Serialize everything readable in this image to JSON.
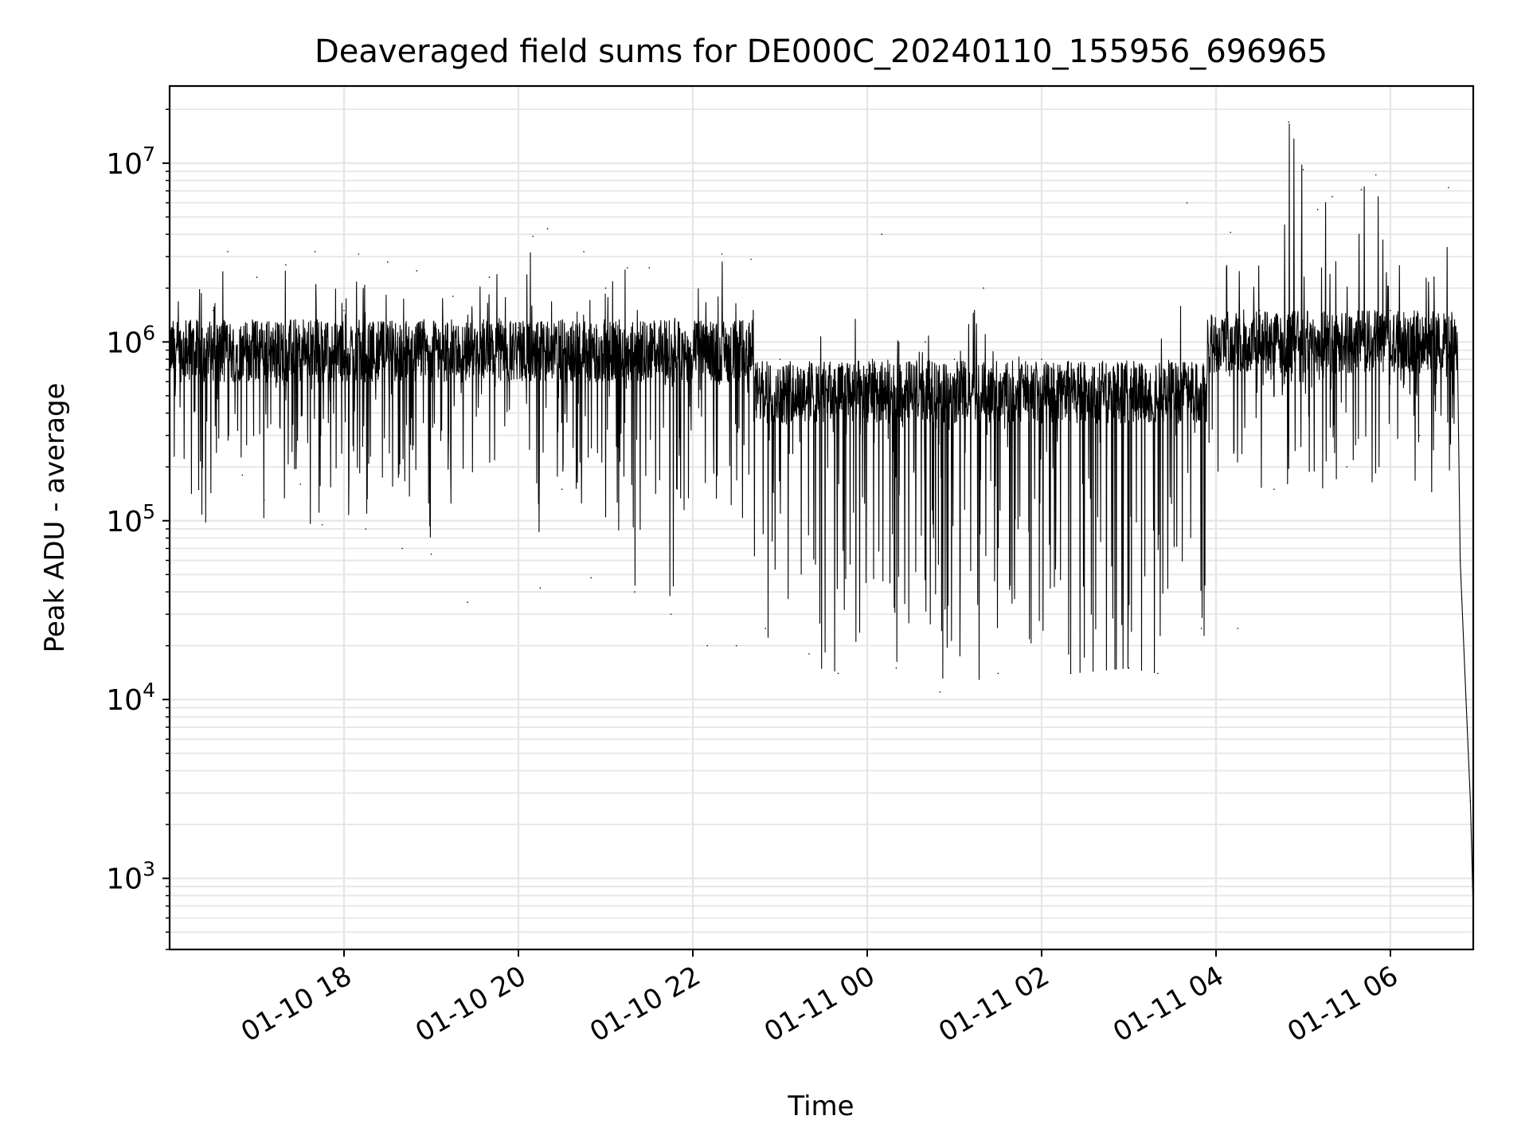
{
  "chart_data": {
    "type": "line",
    "title": "Deaveraged field sums for DE000C_20240110_155956_696965",
    "xlabel": "Time",
    "ylabel": "Peak ADU - average",
    "yscale": "log",
    "ylim": [
      400,
      27000000
    ],
    "xlim": [
      "2024-01-10 16:00",
      "2024-01-11 06:57"
    ],
    "grid": true,
    "x_ticks": [
      {
        "t": "2024-01-10 18:00",
        "label": "01-10 18"
      },
      {
        "t": "2024-01-10 20:00",
        "label": "01-10 20"
      },
      {
        "t": "2024-01-10 22:00",
        "label": "01-10 22"
      },
      {
        "t": "2024-01-11 00:00",
        "label": "01-11 00"
      },
      {
        "t": "2024-01-11 02:00",
        "label": "01-11 02"
      },
      {
        "t": "2024-01-11 04:00",
        "label": "01-11 04"
      },
      {
        "t": "2024-01-11 06:00",
        "label": "01-11 06"
      }
    ],
    "y_ticks": [
      {
        "value": 1000,
        "base": "10",
        "exp": "3"
      },
      {
        "value": 10000,
        "base": "10",
        "exp": "4"
      },
      {
        "value": 100000,
        "base": "10",
        "exp": "5"
      },
      {
        "value": 1000000,
        "base": "10",
        "exp": "6"
      },
      {
        "value": 10000000,
        "base": "10",
        "exp": "7"
      }
    ],
    "series": [
      {
        "color": "#000000",
        "points": [
          [
            "2024-01-10 16:00",
            800000
          ],
          [
            "2024-01-10 16:15",
            1100000
          ],
          [
            "2024-01-10 16:20",
            150000
          ],
          [
            "2024-01-10 16:30",
            1500000
          ],
          [
            "2024-01-10 16:40",
            3200000
          ],
          [
            "2024-01-10 16:50",
            180000
          ],
          [
            "2024-01-10 17:00",
            2300000
          ],
          [
            "2024-01-10 17:05",
            130000
          ],
          [
            "2024-01-10 17:20",
            2700000
          ],
          [
            "2024-01-10 17:30",
            160000
          ],
          [
            "2024-01-10 17:40",
            3200000
          ],
          [
            "2024-01-10 17:45",
            95000
          ],
          [
            "2024-01-10 18:00",
            1500000
          ],
          [
            "2024-01-10 18:10",
            3100000
          ],
          [
            "2024-01-10 18:15",
            90000
          ],
          [
            "2024-01-10 18:30",
            2800000
          ],
          [
            "2024-01-10 18:40",
            70000
          ],
          [
            "2024-01-10 18:50",
            2500000
          ],
          [
            "2024-01-10 19:00",
            65000
          ],
          [
            "2024-01-10 19:15",
            1800000
          ],
          [
            "2024-01-10 19:25",
            35000
          ],
          [
            "2024-01-10 19:40",
            2300000
          ],
          [
            "2024-01-10 20:00",
            1200000
          ],
          [
            "2024-01-10 20:10",
            3900000
          ],
          [
            "2024-01-10 20:15",
            42000
          ],
          [
            "2024-01-10 20:20",
            4300000
          ],
          [
            "2024-01-10 20:30",
            150000
          ],
          [
            "2024-01-10 20:45",
            3200000
          ],
          [
            "2024-01-10 20:50",
            48000
          ],
          [
            "2024-01-10 21:00",
            2000000
          ],
          [
            "2024-01-10 21:15",
            2600000
          ],
          [
            "2024-01-10 21:20",
            40000
          ],
          [
            "2024-01-10 21:30",
            2600000
          ],
          [
            "2024-01-10 21:45",
            30000
          ],
          [
            "2024-01-10 22:00",
            900000
          ],
          [
            "2024-01-10 22:10",
            20000
          ],
          [
            "2024-01-10 22:20",
            3100000
          ],
          [
            "2024-01-10 22:30",
            20000
          ],
          [
            "2024-01-10 22:40",
            2900000
          ],
          [
            "2024-01-10 22:50",
            25000
          ],
          [
            "2024-01-10 23:00",
            800000
          ],
          [
            "2024-01-10 23:20",
            18000
          ],
          [
            "2024-01-10 23:40",
            14000
          ],
          [
            "2024-01-11 00:00",
            700000
          ],
          [
            "2024-01-11 00:10",
            4000000
          ],
          [
            "2024-01-11 00:20",
            15000
          ],
          [
            "2024-01-11 00:40",
            1000000
          ],
          [
            "2024-01-11 00:50",
            11000
          ],
          [
            "2024-01-11 01:00",
            800000
          ],
          [
            "2024-01-11 01:20",
            2000000
          ],
          [
            "2024-01-11 01:30",
            14000
          ],
          [
            "2024-01-11 02:00",
            800000
          ],
          [
            "2024-01-11 02:20",
            14000
          ],
          [
            "2024-01-11 03:00",
            15000
          ],
          [
            "2024-01-11 03:20",
            14000
          ],
          [
            "2024-01-11 03:40",
            6000000
          ],
          [
            "2024-01-11 03:50",
            25000
          ],
          [
            "2024-01-11 04:00",
            800000
          ],
          [
            "2024-01-11 04:10",
            4100000
          ],
          [
            "2024-01-11 04:15",
            25000
          ],
          [
            "2024-01-11 04:30",
            1500000
          ],
          [
            "2024-01-11 04:40",
            150000
          ],
          [
            "2024-01-11 04:50",
            17000000
          ],
          [
            "2024-01-11 05:00",
            9200000
          ],
          [
            "2024-01-11 05:10",
            5500000
          ],
          [
            "2024-01-11 05:20",
            6500000
          ],
          [
            "2024-01-11 05:30",
            200000
          ],
          [
            "2024-01-11 05:40",
            7100000
          ],
          [
            "2024-01-11 05:50",
            8600000
          ],
          [
            "2024-01-11 06:00",
            1500000
          ],
          [
            "2024-01-11 06:20",
            300000
          ],
          [
            "2024-01-11 06:30",
            2300000
          ],
          [
            "2024-01-11 06:40",
            7300000
          ],
          [
            "2024-01-11 06:48",
            60000
          ],
          [
            "2024-01-11 06:52",
            10000
          ],
          [
            "2024-01-11 06:55",
            2700
          ],
          [
            "2024-01-11 06:57",
            650
          ]
        ]
      }
    ]
  }
}
